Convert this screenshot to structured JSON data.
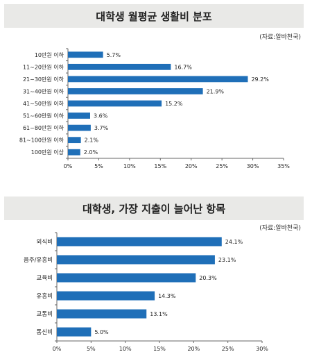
{
  "chart_data": [
    {
      "type": "bar",
      "orientation": "horizontal",
      "title": "대학생 월평균 생활비 분포",
      "source": "(자료:알바천국)",
      "categories": [
        "10만원 이하",
        "11~20만원 이하",
        "21~30만원 이하",
        "31~40만원 이하",
        "41~50만원 이하",
        "51~60만원 이하",
        "61~80만원 이하",
        "81~100만원 이하",
        "100만원 이상"
      ],
      "values": [
        5.7,
        16.7,
        29.2,
        21.9,
        15.2,
        3.6,
        3.7,
        2.1,
        2.0
      ],
      "value_labels": [
        "5.7%",
        "16.7%",
        "29.2%",
        "21.9%",
        "15.2%",
        "3.6%",
        "3.7%",
        "2.1%",
        "2.0%"
      ],
      "xlim": [
        0,
        35
      ],
      "xticks": [
        "0%",
        "5%",
        "10%",
        "15%",
        "20%",
        "25%",
        "30%",
        "35%"
      ],
      "grid": false,
      "bar_color": "#1f6fb8"
    },
    {
      "type": "bar",
      "orientation": "horizontal",
      "title": "대학생, 가장 지출이 늘어난 항목",
      "source": "(자료:알바천국)",
      "categories": [
        "외식비",
        "음주/유흥비",
        "교육비",
        "유흥비",
        "교통비",
        "통신비"
      ],
      "values": [
        24.1,
        23.1,
        20.3,
        14.3,
        13.1,
        5.0
      ],
      "value_labels": [
        "24.1%",
        "23.1%",
        "20.3%",
        "14.3%",
        "13.1%",
        "5.0%"
      ],
      "xlim": [
        0,
        30
      ],
      "xticks": [
        "0%",
        "5%",
        "10%",
        "15%",
        "20%",
        "25%",
        "30%"
      ],
      "grid": false,
      "bar_color": "#1f6fb8"
    }
  ]
}
